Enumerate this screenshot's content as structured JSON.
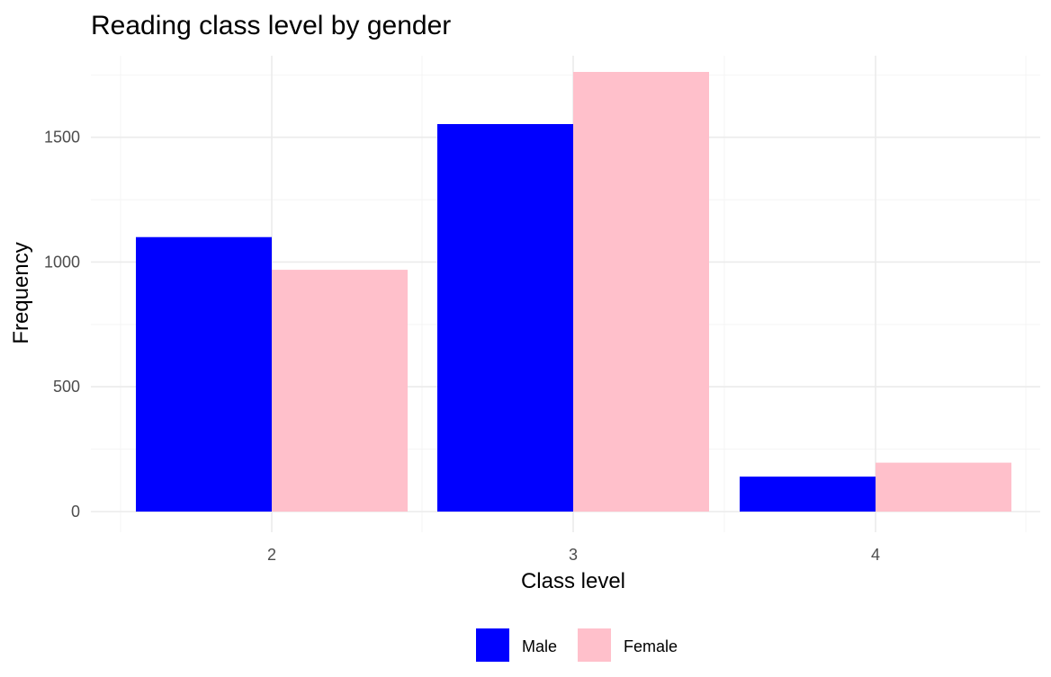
{
  "chart_data": {
    "type": "bar",
    "title": "Reading class level by gender",
    "xlabel": "Class level",
    "ylabel": "Frequency",
    "categories": [
      "2",
      "3",
      "4"
    ],
    "series": [
      {
        "name": "Male",
        "color": "#0000ff",
        "values": [
          1100,
          1553,
          140
        ]
      },
      {
        "name": "Female",
        "color": "#ffc0cb",
        "values": [
          969,
          1762,
          196
        ]
      }
    ],
    "yticks": [
      0,
      500,
      1000,
      1500
    ],
    "ylim": [
      -65,
      1762
    ],
    "grid": true,
    "legend_position": "bottom"
  }
}
